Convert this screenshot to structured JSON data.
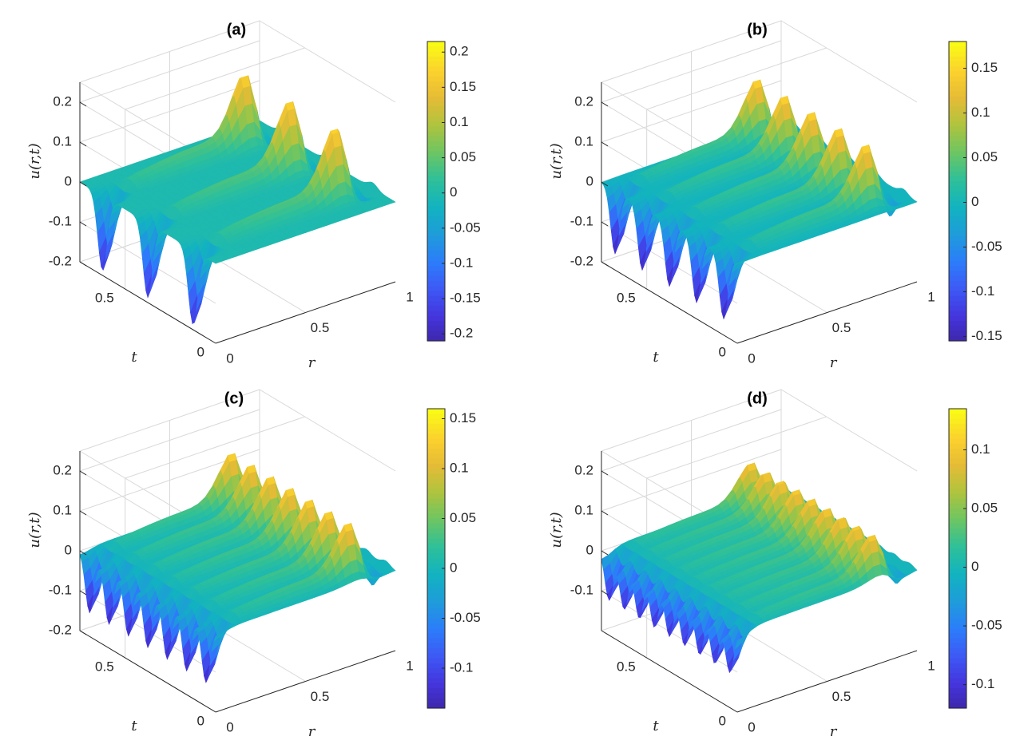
{
  "colormap": [
    "#3e26a8",
    "#4435dd",
    "#3d59f5",
    "#2c7dfa",
    "#1e9cd9",
    "#12b3c0",
    "#2ec09a",
    "#6cc563",
    "#aec43e",
    "#e5bb36",
    "#fbd22d",
    "#f9fb15"
  ],
  "chart_data": [
    {
      "type": "surface",
      "title": "(a)",
      "zlabel": "u(r,t)",
      "xlabel": "r",
      "ylabel": "t",
      "z_ticks": [
        "0.2",
        "0.1",
        "0",
        "-0.1",
        "-0.2"
      ],
      "t_ticks": [
        "0.5",
        "0"
      ],
      "r_ticks": [
        "0",
        "0.5",
        "1"
      ],
      "zlim": [
        -0.2,
        0.2
      ],
      "clim": [
        -0.21,
        0.215
      ],
      "colorbar_ticks": [
        "0.2",
        "0.15",
        "0.1",
        "0.05",
        "0",
        "-0.05",
        "-0.1",
        "-0.15",
        "-0.2"
      ],
      "ridges": 3,
      "amplitude": 0.2
    },
    {
      "type": "surface",
      "title": "(b)",
      "zlabel": "u(r,t)",
      "xlabel": "r",
      "ylabel": "t",
      "z_ticks": [
        "0.2",
        "0.1",
        "0",
        "-0.1",
        "-0.2"
      ],
      "t_ticks": [
        "0.5",
        "0"
      ],
      "r_ticks": [
        "0",
        "0.5",
        "1"
      ],
      "zlim": [
        -0.2,
        0.2
      ],
      "clim": [
        -0.155,
        0.18
      ],
      "colorbar_ticks": [
        "0.15",
        "0.1",
        "0.05",
        "0",
        "-0.05",
        "-0.1",
        "-0.15"
      ],
      "ridges": 5,
      "amplitude": 0.17
    },
    {
      "type": "surface",
      "title": "(c)",
      "zlabel": "u(r,t)",
      "xlabel": "r",
      "ylabel": "t",
      "z_ticks": [
        "0.2",
        "0.1",
        "0",
        "-0.1",
        "-0.2"
      ],
      "t_ticks": [
        "0.5",
        "0"
      ],
      "r_ticks": [
        "0",
        "0.5",
        "1"
      ],
      "zlim": [
        -0.2,
        0.2
      ],
      "clim": [
        -0.14,
        0.16
      ],
      "colorbar_ticks": [
        "0.15",
        "0.1",
        "0.05",
        "0",
        "-0.05",
        "-0.1"
      ],
      "ridges": 7,
      "amplitude": 0.15
    },
    {
      "type": "surface",
      "title": "(d)",
      "zlabel": "u(r,t)",
      "xlabel": "r",
      "ylabel": "t",
      "z_ticks": [
        "0.2",
        "0.1",
        "0",
        "-0.1"
      ],
      "t_ticks": [
        "0.5",
        "0"
      ],
      "r_ticks": [
        "0",
        "0.5",
        "1"
      ],
      "zlim": [
        -0.12,
        0.2
      ],
      "clim": [
        -0.12,
        0.135
      ],
      "colorbar_ticks": [
        "0.1",
        "0.05",
        "0",
        "-0.05",
        "-0.1"
      ],
      "ridges": 9,
      "amplitude": 0.12
    }
  ]
}
